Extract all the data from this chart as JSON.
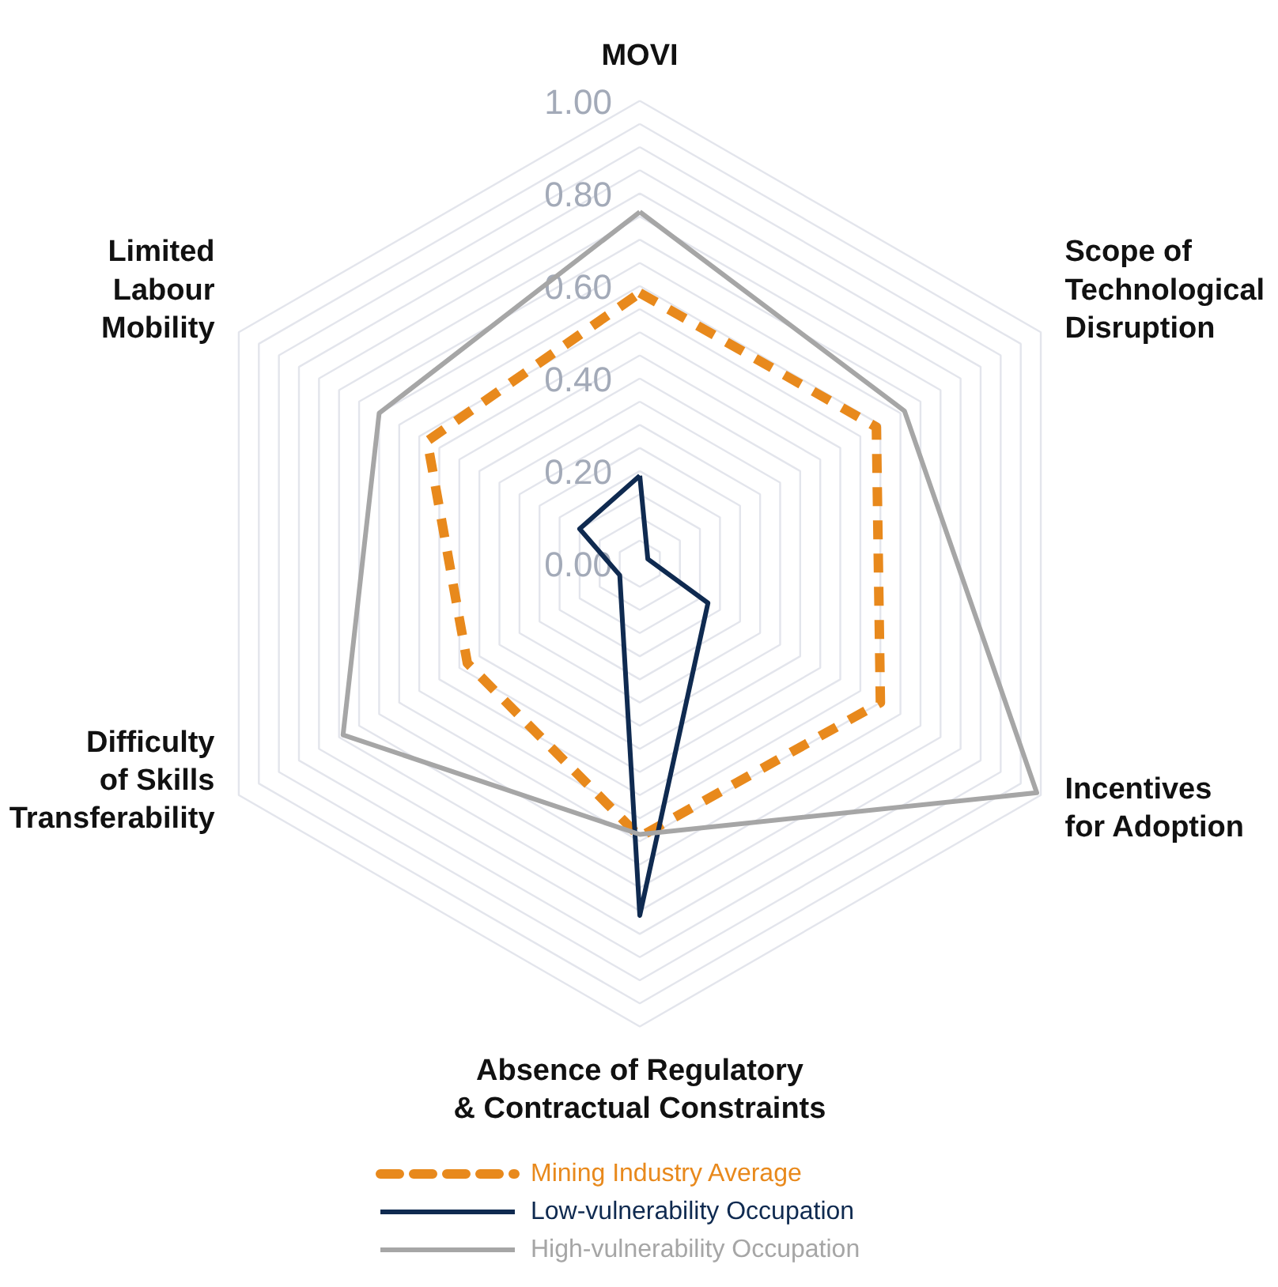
{
  "chart_data": {
    "type": "radar",
    "categories": [
      "MOVI",
      "Scope of\nTechnological\nDisruption",
      "Incentives\nfor Adoption",
      "Absence of Regulatory\n& Contractual Constraints",
      "Difficulty\nof Skills\nTransferability",
      "Limited\nLabour\nMobility"
    ],
    "series": [
      {
        "name": "Mining Industry Average",
        "color": "#e8891c",
        "line_style": "dashed",
        "values": [
          0.585,
          0.59,
          0.6,
          0.59,
          0.43,
          0.53
        ]
      },
      {
        "name": "Low-vulnerability Occupation",
        "color": "#0f2a50",
        "line_style": "solid",
        "values": [
          0.19,
          0.02,
          0.17,
          0.76,
          0.05,
          0.15
        ]
      },
      {
        "name": "High-vulnerability Occupation",
        "color": "#a6a6a6",
        "line_style": "solid",
        "values": [
          0.76,
          0.66,
          0.99,
          0.585,
          0.74,
          0.65
        ]
      }
    ],
    "ylim": [
      0,
      1
    ],
    "yticks": [
      {
        "value": 0,
        "label": "0.00"
      },
      {
        "value": 0.2,
        "label": "0.20"
      },
      {
        "value": 0.4,
        "label": "0.40"
      },
      {
        "value": 0.6,
        "label": "0.60"
      },
      {
        "value": 0.8,
        "label": "0.80"
      },
      {
        "value": 1,
        "label": "1.00"
      }
    ],
    "grid": true,
    "legend": "bottom"
  }
}
